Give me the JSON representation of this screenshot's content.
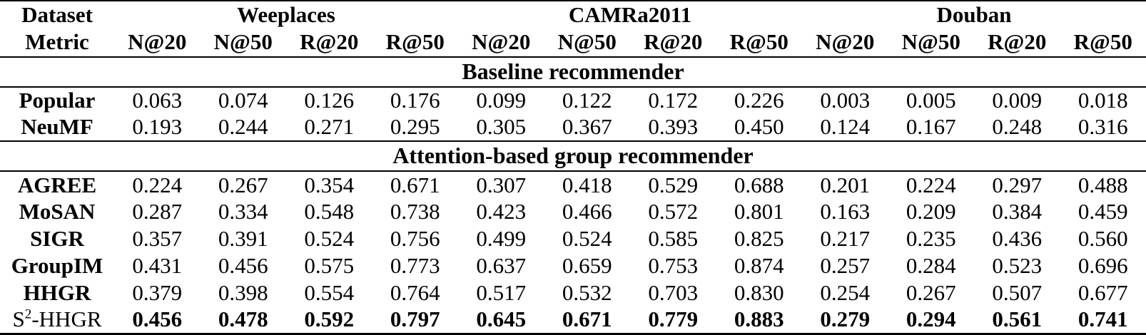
{
  "page": {
    "background_color": "#ffffff",
    "text_color": "#000000",
    "rule_color": "#000000"
  },
  "table": {
    "corner": {
      "dataset_label": "Dataset",
      "metric_label": "Metric"
    },
    "groups": [
      {
        "label": "Weeplaces",
        "metrics": [
          "N@20",
          "N@50",
          "R@20",
          "R@50"
        ]
      },
      {
        "label": "CAMRa2011",
        "metrics": [
          "N@20",
          "N@50",
          "R@20",
          "R@50"
        ]
      },
      {
        "label": "Douban",
        "metrics": [
          "N@20",
          "N@50",
          "R@20",
          "R@50"
        ]
      }
    ],
    "sections": [
      {
        "title": "Baseline recommender",
        "rows": [
          {
            "id": "popular",
            "model": "Popular",
            "label_bold": true,
            "values_bold": false,
            "values": [
              "0.063",
              "0.074",
              "0.126",
              "0.176",
              "0.099",
              "0.122",
              "0.172",
              "0.226",
              "0.003",
              "0.005",
              "0.009",
              "0.018"
            ]
          },
          {
            "id": "neumf",
            "model": "NeuMF",
            "label_bold": true,
            "values_bold": false,
            "values": [
              "0.193",
              "0.244",
              "0.271",
              "0.295",
              "0.305",
              "0.367",
              "0.393",
              "0.450",
              "0.124",
              "0.167",
              "0.248",
              "0.316"
            ]
          }
        ]
      },
      {
        "title": "Attention-based group recommender",
        "rows": [
          {
            "id": "agree",
            "model": "AGREE",
            "label_bold": true,
            "values_bold": false,
            "values": [
              "0.224",
              "0.267",
              "0.354",
              "0.671",
              "0.307",
              "0.418",
              "0.529",
              "0.688",
              "0.201",
              "0.224",
              "0.297",
              "0.488"
            ]
          },
          {
            "id": "mosan",
            "model": "MoSAN",
            "label_bold": true,
            "values_bold": false,
            "values": [
              "0.287",
              "0.334",
              "0.548",
              "0.738",
              "0.423",
              "0.466",
              "0.572",
              "0.801",
              "0.163",
              "0.209",
              "0.384",
              "0.459"
            ]
          },
          {
            "id": "sigr",
            "model": "SIGR",
            "label_bold": true,
            "values_bold": false,
            "values": [
              "0.357",
              "0.391",
              "0.524",
              "0.756",
              "0.499",
              "0.524",
              "0.585",
              "0.825",
              "0.217",
              "0.235",
              "0.436",
              "0.560"
            ]
          },
          {
            "id": "groupim",
            "model": "GroupIM",
            "label_bold": true,
            "values_bold": false,
            "values": [
              "0.431",
              "0.456",
              "0.575",
              "0.773",
              "0.637",
              "0.659",
              "0.753",
              "0.874",
              "0.257",
              "0.284",
              "0.523",
              "0.696"
            ]
          },
          {
            "id": "hhgr",
            "model": "HHGR",
            "label_bold": true,
            "values_bold": false,
            "values": [
              "0.379",
              "0.398",
              "0.554",
              "0.764",
              "0.517",
              "0.532",
              "0.703",
              "0.830",
              "0.254",
              "0.267",
              "0.507",
              "0.677"
            ]
          },
          {
            "id": "s2-hhgr",
            "model": {
              "base": "S",
              "sup": "2",
              "rest": "-HHGR"
            },
            "label_bold": false,
            "values_bold": true,
            "values": [
              "0.456",
              "0.478",
              "0.592",
              "0.797",
              "0.645",
              "0.671",
              "0.779",
              "0.883",
              "0.279",
              "0.294",
              "0.561",
              "0.741"
            ]
          }
        ]
      }
    ]
  }
}
